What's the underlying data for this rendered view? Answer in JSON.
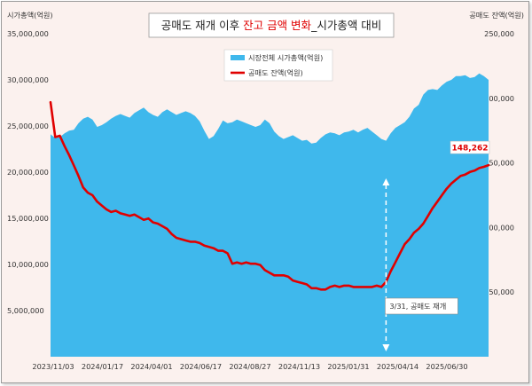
{
  "chart_data": {
    "type": "area+line",
    "title": {
      "prefix": "공매도 재개 이후 ",
      "highlight": "잔고 금액 변화",
      "suffix": "_시가총액 대비",
      "highlight_color": "#e00000"
    },
    "left_axis_title": "시가총액(억원)",
    "right_axis_title": "공매도 잔액(억원)",
    "left_ylim": [
      0,
      35000000
    ],
    "right_ylim": [
      0,
      250000
    ],
    "left_ticks": [
      "5,000,000",
      "10,000,000",
      "15,000,000",
      "20,000,000",
      "25,000,000",
      "30,000,000",
      "35,000,000"
    ],
    "left_tick_values": [
      5000000,
      10000000,
      15000000,
      20000000,
      25000000,
      30000000,
      35000000
    ],
    "right_ticks": [
      "50,000",
      "100,000",
      "150,000",
      "200,000",
      "250,000"
    ],
    "right_tick_values": [
      50000,
      100000,
      150000,
      200000,
      250000
    ],
    "x_tick_labels": [
      "2023/11/03",
      "2024/01/17",
      "2024/04/01",
      "2024/06/17",
      "2024/08/27",
      "2024/11/13",
      "2025/01/31",
      "2025/04/14",
      "2025/06/30"
    ],
    "legend": {
      "market_cap": "시장전체 시가총액(억원)",
      "short_balance": "공매도 잔액(억원)"
    },
    "colors": {
      "market_cap": "#3fb8ec",
      "short_balance": "#e00000",
      "plot_bg": "#fbf1ee"
    },
    "annotation": {
      "label": "3/31, 공매도 재개",
      "at_index": 72
    },
    "end_label": "148,262",
    "series": [
      {
        "name": "시장전체 시가총액(억원)",
        "axis": "left",
        "values": [
          24100000,
          23700000,
          23800000,
          24200000,
          24500000,
          24600000,
          25300000,
          25800000,
          26000000,
          25700000,
          24900000,
          25100000,
          25400000,
          25800000,
          26100000,
          26300000,
          26100000,
          25900000,
          26400000,
          26700000,
          27000000,
          26500000,
          26200000,
          26000000,
          26500000,
          26800000,
          26500000,
          26200000,
          26400000,
          26600000,
          26400000,
          26100000,
          25500000,
          24500000,
          23600000,
          23900000,
          24700000,
          25600000,
          25300000,
          25400000,
          25700000,
          25500000,
          25300000,
          25100000,
          24900000,
          25100000,
          25700000,
          25300000,
          24400000,
          23900000,
          23600000,
          23800000,
          24000000,
          23700000,
          23400000,
          23500000,
          23100000,
          23200000,
          23700000,
          24100000,
          24300000,
          24200000,
          24000000,
          24300000,
          24400000,
          24600000,
          24300000,
          24600000,
          24800000,
          24400000,
          24000000,
          23600000,
          23400000,
          24200000,
          24800000,
          25100000,
          25400000,
          26000000,
          26900000,
          27300000,
          28400000,
          28900000,
          29000000,
          28900000,
          29400000,
          29800000,
          30000000,
          30400000,
          30400000,
          30500000,
          30200000,
          30300000,
          30700000,
          30400000,
          30000000
        ]
      },
      {
        "name": "공매도 잔액(억원)",
        "axis": "right",
        "values": [
          197000,
          170000,
          171000,
          163000,
          156000,
          148000,
          140000,
          131000,
          127000,
          125000,
          120000,
          117000,
          114000,
          112000,
          113000,
          111000,
          110000,
          109000,
          110000,
          108000,
          106000,
          107000,
          104000,
          103000,
          101000,
          99000,
          95000,
          92000,
          91000,
          90000,
          89000,
          89000,
          88000,
          86000,
          85000,
          84000,
          82000,
          82000,
          80000,
          72000,
          73000,
          72000,
          73000,
          72000,
          72000,
          71000,
          67000,
          65000,
          63000,
          63000,
          63000,
          62000,
          59000,
          58000,
          57000,
          56000,
          53000,
          53000,
          52000,
          52000,
          54000,
          55000,
          54000,
          55000,
          55000,
          54000,
          54000,
          54000,
          54000,
          54000,
          55000,
          54000,
          58000,
          66000,
          73000,
          80000,
          87000,
          91000,
          96000,
          99000,
          103000,
          109000,
          115000,
          120000,
          125000,
          130000,
          134000,
          137000,
          140000,
          141000,
          143000,
          144000,
          146000,
          147000,
          148262
        ]
      }
    ]
  }
}
